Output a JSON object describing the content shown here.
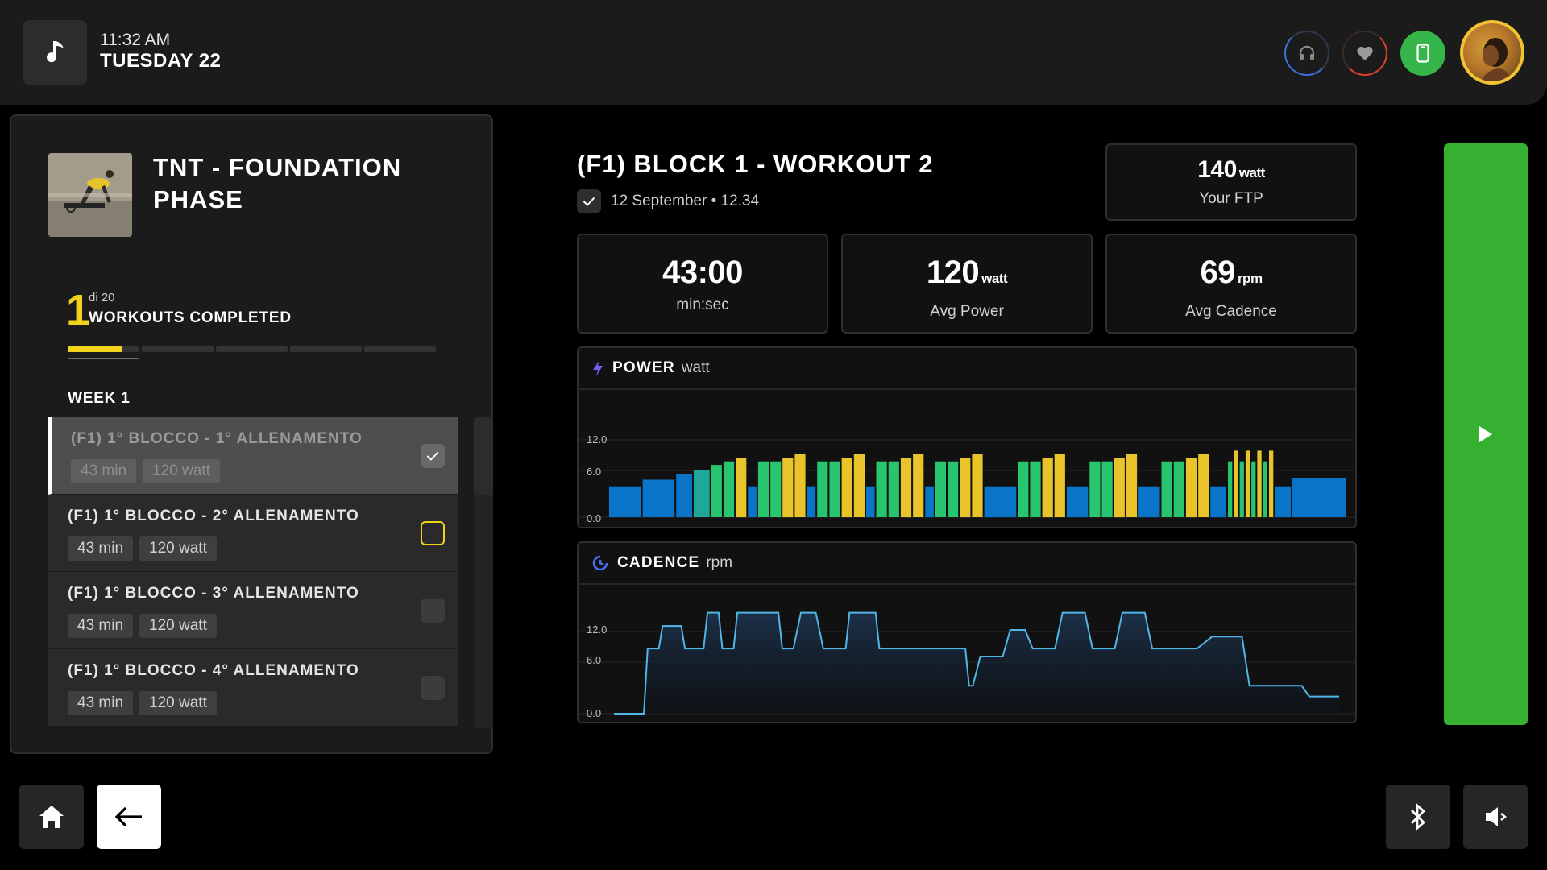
{
  "header": {
    "time": "11:32 AM",
    "date": "TUESDAY 22"
  },
  "program": {
    "title": "TNT - FOUNDATION PHASE",
    "completed_count": "1",
    "total_label": "di 20",
    "completed_label": "WORKOUTS COMPLETED",
    "progress_fraction": 0.05,
    "week_label": "WEEK 1"
  },
  "workouts": [
    {
      "title": "(F1) 1° BLOCCO - 1° ALLENAMENTO",
      "duration": "43 min",
      "power": "120 watt",
      "status": "completed"
    },
    {
      "title": "(F1) 1° BLOCCO - 2° ALLENAMENTO",
      "duration": "43 min",
      "power": "120 watt",
      "status": "current"
    },
    {
      "title": "(F1) 1° BLOCCO - 3° ALLENAMENTO",
      "duration": "43 min",
      "power": "120 watt",
      "status": "pending"
    },
    {
      "title": "(F1) 1° BLOCCO - 4° ALLENAMENTO",
      "duration": "43 min",
      "power": "120 watt",
      "status": "pending"
    }
  ],
  "workout": {
    "title": "(F1) BLOCK 1 - WORKOUT 2",
    "meta": "12 September • 12.34"
  },
  "stats": {
    "ftp": {
      "value": "140",
      "unit": "watt",
      "label": "Your FTP"
    },
    "duration": {
      "value": "43:00",
      "label": "min:sec"
    },
    "avg_power": {
      "value": "120",
      "unit": "watt",
      "label": "Avg Power"
    },
    "avg_cadence": {
      "value": "69",
      "unit": "rpm",
      "label": "Avg Cadence"
    }
  },
  "charts": {
    "power": {
      "title": "POWER",
      "unit": "watt",
      "ticks": [
        "12.0",
        "6.0",
        "0.0"
      ]
    },
    "cadence": {
      "title": "CADENCE",
      "unit": "rpm",
      "ticks": [
        "12.0",
        "6.0",
        "0.0"
      ]
    }
  },
  "chart_data": [
    {
      "type": "bar",
      "title": "POWER",
      "ylabel": "watt",
      "ylim": [
        0,
        16
      ],
      "note": "bar heights estimated; colors encode intensity zone",
      "values": [
        {
          "v": 5.2,
          "w": 3,
          "c": "blue"
        },
        {
          "v": 6.3,
          "w": 3,
          "c": "blue"
        },
        {
          "v": 7.3,
          "w": 1.5,
          "c": "blue"
        },
        {
          "v": 8,
          "w": 1.5,
          "c": "teal"
        },
        {
          "v": 8.8,
          "w": 1,
          "c": "green"
        },
        {
          "v": 9.4,
          "w": 1,
          "c": "green"
        },
        {
          "v": 10,
          "w": 1,
          "c": "yellow"
        },
        {
          "v": 5.2,
          "w": 0.8,
          "c": "blue"
        },
        {
          "v": 9.4,
          "w": 1,
          "c": "green"
        },
        {
          "v": 9.4,
          "w": 1,
          "c": "green"
        },
        {
          "v": 10,
          "w": 1,
          "c": "yellow"
        },
        {
          "v": 10.6,
          "w": 1,
          "c": "yellow"
        },
        {
          "v": 5.2,
          "w": 0.8,
          "c": "blue"
        },
        {
          "v": 9.4,
          "w": 1,
          "c": "green"
        },
        {
          "v": 9.4,
          "w": 1,
          "c": "green"
        },
        {
          "v": 10,
          "w": 1,
          "c": "yellow"
        },
        {
          "v": 10.6,
          "w": 1,
          "c": "yellow"
        },
        {
          "v": 5.2,
          "w": 0.8,
          "c": "blue"
        },
        {
          "v": 9.4,
          "w": 1,
          "c": "green"
        },
        {
          "v": 9.4,
          "w": 1,
          "c": "green"
        },
        {
          "v": 10,
          "w": 1,
          "c": "yellow"
        },
        {
          "v": 10.6,
          "w": 1,
          "c": "yellow"
        },
        {
          "v": 5.2,
          "w": 0.8,
          "c": "blue"
        },
        {
          "v": 9.4,
          "w": 1,
          "c": "green"
        },
        {
          "v": 9.4,
          "w": 1,
          "c": "green"
        },
        {
          "v": 10,
          "w": 1,
          "c": "yellow"
        },
        {
          "v": 10.6,
          "w": 1,
          "c": "yellow"
        },
        {
          "v": 5.2,
          "w": 3,
          "c": "blue"
        },
        {
          "v": 9.4,
          "w": 1,
          "c": "green"
        },
        {
          "v": 9.4,
          "w": 1,
          "c": "green"
        },
        {
          "v": 10,
          "w": 1,
          "c": "yellow"
        },
        {
          "v": 10.6,
          "w": 1,
          "c": "yellow"
        },
        {
          "v": 5.2,
          "w": 2,
          "c": "blue"
        },
        {
          "v": 9.4,
          "w": 1,
          "c": "green"
        },
        {
          "v": 9.4,
          "w": 1,
          "c": "green"
        },
        {
          "v": 10,
          "w": 1,
          "c": "yellow"
        },
        {
          "v": 10.6,
          "w": 1,
          "c": "yellow"
        },
        {
          "v": 5.2,
          "w": 2,
          "c": "blue"
        },
        {
          "v": 9.4,
          "w": 1,
          "c": "green"
        },
        {
          "v": 9.4,
          "w": 1,
          "c": "green"
        },
        {
          "v": 10,
          "w": 1,
          "c": "yellow"
        },
        {
          "v": 10.6,
          "w": 1,
          "c": "yellow"
        },
        {
          "v": 5.2,
          "w": 1.5,
          "c": "blue"
        },
        {
          "v": 9.4,
          "w": 0.4,
          "c": "green"
        },
        {
          "v": 11.2,
          "w": 0.4,
          "c": "yellow"
        },
        {
          "v": 9.4,
          "w": 0.4,
          "c": "green"
        },
        {
          "v": 11.2,
          "w": 0.4,
          "c": "yellow"
        },
        {
          "v": 9.4,
          "w": 0.4,
          "c": "green"
        },
        {
          "v": 11.2,
          "w": 0.4,
          "c": "yellow"
        },
        {
          "v": 9.4,
          "w": 0.4,
          "c": "green"
        },
        {
          "v": 11.2,
          "w": 0.4,
          "c": "yellow"
        },
        {
          "v": 5.2,
          "w": 1.5,
          "c": "blue"
        },
        {
          "v": 6.6,
          "w": 5,
          "c": "blue"
        }
      ],
      "colors": {
        "blue": "#0a74c9",
        "teal": "#1ea79a",
        "green": "#29c46e",
        "yellow": "#e8c32a"
      }
    },
    {
      "type": "line",
      "title": "CADENCE",
      "ylabel": "rpm",
      "ylim": [
        0,
        16
      ],
      "x": [
        0,
        4,
        4.5,
        6,
        6.5,
        9,
        9.5,
        12,
        12.5,
        14,
        14.5,
        16,
        16.5,
        22,
        22.5,
        24,
        25,
        27,
        28,
        31,
        31.5,
        35,
        35.5,
        39,
        40,
        41,
        42,
        43,
        43.5,
        47,
        47.5,
        48,
        49,
        52,
        53,
        55,
        56,
        59,
        60,
        63,
        64,
        67,
        68,
        71,
        72,
        78,
        80,
        81,
        82,
        84,
        85,
        88,
        89,
        92,
        93,
        97
      ],
      "y": [
        0,
        0,
        9.8,
        9.8,
        13.2,
        13.2,
        9.8,
        9.8,
        15.2,
        15.2,
        9.8,
        9.8,
        15.2,
        15.2,
        9.8,
        9.8,
        15.2,
        15.2,
        9.8,
        9.8,
        15.2,
        15.2,
        9.8,
        9.8,
        9.8,
        9.8,
        9.8,
        9.8,
        9.8,
        9.8,
        4.2,
        4.2,
        8.6,
        8.6,
        12.6,
        12.6,
        9.8,
        9.8,
        15.2,
        15.2,
        9.8,
        9.8,
        15.2,
        15.2,
        9.8,
        9.8,
        11.6,
        11.6,
        11.6,
        11.6,
        4.2,
        4.2,
        4.2,
        4.2,
        2.6,
        2.6
      ],
      "colors": {
        "line": "#4fb6e6"
      }
    }
  ]
}
